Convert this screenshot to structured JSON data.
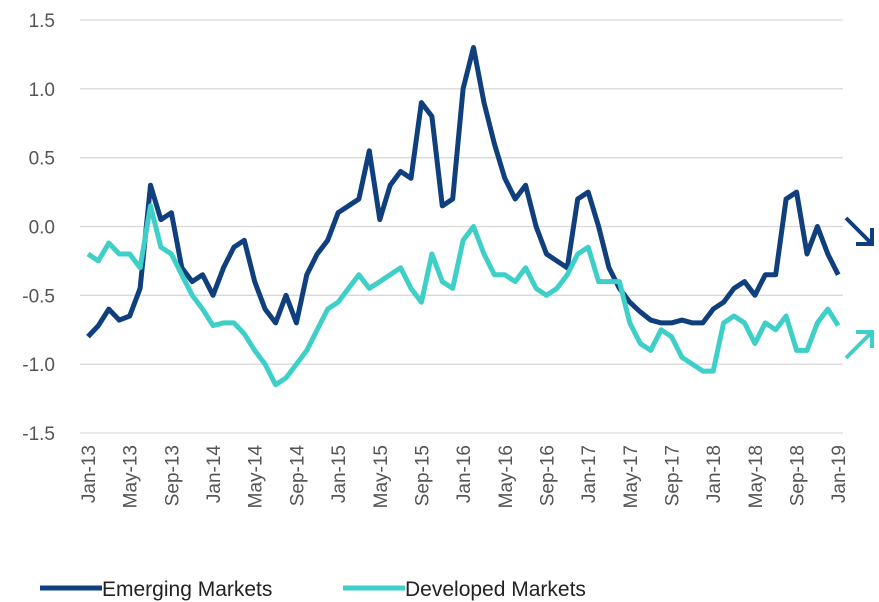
{
  "chart_data": {
    "type": "line",
    "categories": [
      "Jan-13",
      null,
      null,
      null,
      "May-13",
      null,
      null,
      null,
      "Sep-13",
      null,
      null,
      null,
      "Jan-14",
      null,
      null,
      null,
      "May-14",
      null,
      null,
      null,
      "Sep-14",
      null,
      null,
      null,
      "Jan-15",
      null,
      null,
      null,
      "May-15",
      null,
      null,
      null,
      "Sep-15",
      null,
      null,
      null,
      "Jan-16",
      null,
      null,
      null,
      "May-16",
      null,
      null,
      null,
      "Sep-16",
      null,
      null,
      null,
      "Jan-17",
      null,
      null,
      null,
      "May-17",
      null,
      null,
      null,
      "Sep-17",
      null,
      null,
      null,
      "Jan-18",
      null,
      null,
      null,
      "May-18",
      null,
      null,
      null,
      "Sep-18",
      null,
      null,
      null,
      "Jan-19"
    ],
    "series": [
      {
        "name": "Emerging Markets",
        "color": "#0f3f7d",
        "values": [
          -0.8,
          -0.72,
          -0.6,
          -0.68,
          -0.65,
          -0.45,
          0.3,
          0.05,
          0.1,
          -0.3,
          -0.4,
          -0.35,
          -0.5,
          -0.3,
          -0.15,
          -0.1,
          -0.4,
          -0.6,
          -0.7,
          -0.5,
          -0.7,
          -0.35,
          -0.2,
          -0.1,
          0.1,
          0.15,
          0.2,
          0.55,
          0.05,
          0.3,
          0.4,
          0.35,
          0.9,
          0.8,
          0.15,
          0.2,
          1.0,
          1.3,
          0.9,
          0.6,
          0.35,
          0.2,
          0.3,
          0.0,
          -0.2,
          -0.25,
          -0.3,
          0.2,
          0.25,
          0.0,
          -0.3,
          -0.45,
          -0.55,
          -0.62,
          -0.68,
          -0.7,
          -0.7,
          -0.68,
          -0.7,
          -0.7,
          -0.6,
          -0.55,
          -0.45,
          -0.4,
          -0.5,
          -0.35,
          -0.35,
          0.2,
          0.25,
          -0.2,
          0.0,
          -0.2,
          -0.35
        ]
      },
      {
        "name": "Developed Markets",
        "color": "#3dcfc8",
        "values": [
          -0.2,
          -0.25,
          -0.12,
          -0.2,
          -0.2,
          -0.3,
          0.15,
          -0.15,
          -0.2,
          -0.35,
          -0.5,
          -0.6,
          -0.72,
          -0.7,
          -0.7,
          -0.78,
          -0.9,
          -1.0,
          -1.15,
          -1.1,
          -1.0,
          -0.9,
          -0.75,
          -0.6,
          -0.55,
          -0.45,
          -0.35,
          -0.45,
          -0.4,
          -0.35,
          -0.3,
          -0.45,
          -0.55,
          -0.2,
          -0.4,
          -0.45,
          -0.1,
          0.0,
          -0.2,
          -0.35,
          -0.35,
          -0.4,
          -0.3,
          -0.45,
          -0.5,
          -0.45,
          -0.35,
          -0.2,
          -0.15,
          -0.4,
          -0.4,
          -0.4,
          -0.7,
          -0.85,
          -0.9,
          -0.75,
          -0.8,
          -0.95,
          -1.0,
          -1.05,
          -1.05,
          -0.7,
          -0.65,
          -0.7,
          -0.85,
          -0.7,
          -0.75,
          -0.65,
          -0.9,
          -0.9,
          -0.7,
          -0.6,
          -0.72
        ]
      }
    ],
    "ylim": [
      -1.5,
      1.5
    ],
    "yticks": [
      {
        "value": 1.5,
        "label": "1.5"
      },
      {
        "value": 1.0,
        "label": "1.0"
      },
      0.5,
      {
        "value": 0.0,
        "label": "0.0"
      },
      -0.5,
      {
        "value": -1.0,
        "label": "-1.0"
      },
      -1.5
    ],
    "grid": true,
    "legend": "bottom"
  }
}
